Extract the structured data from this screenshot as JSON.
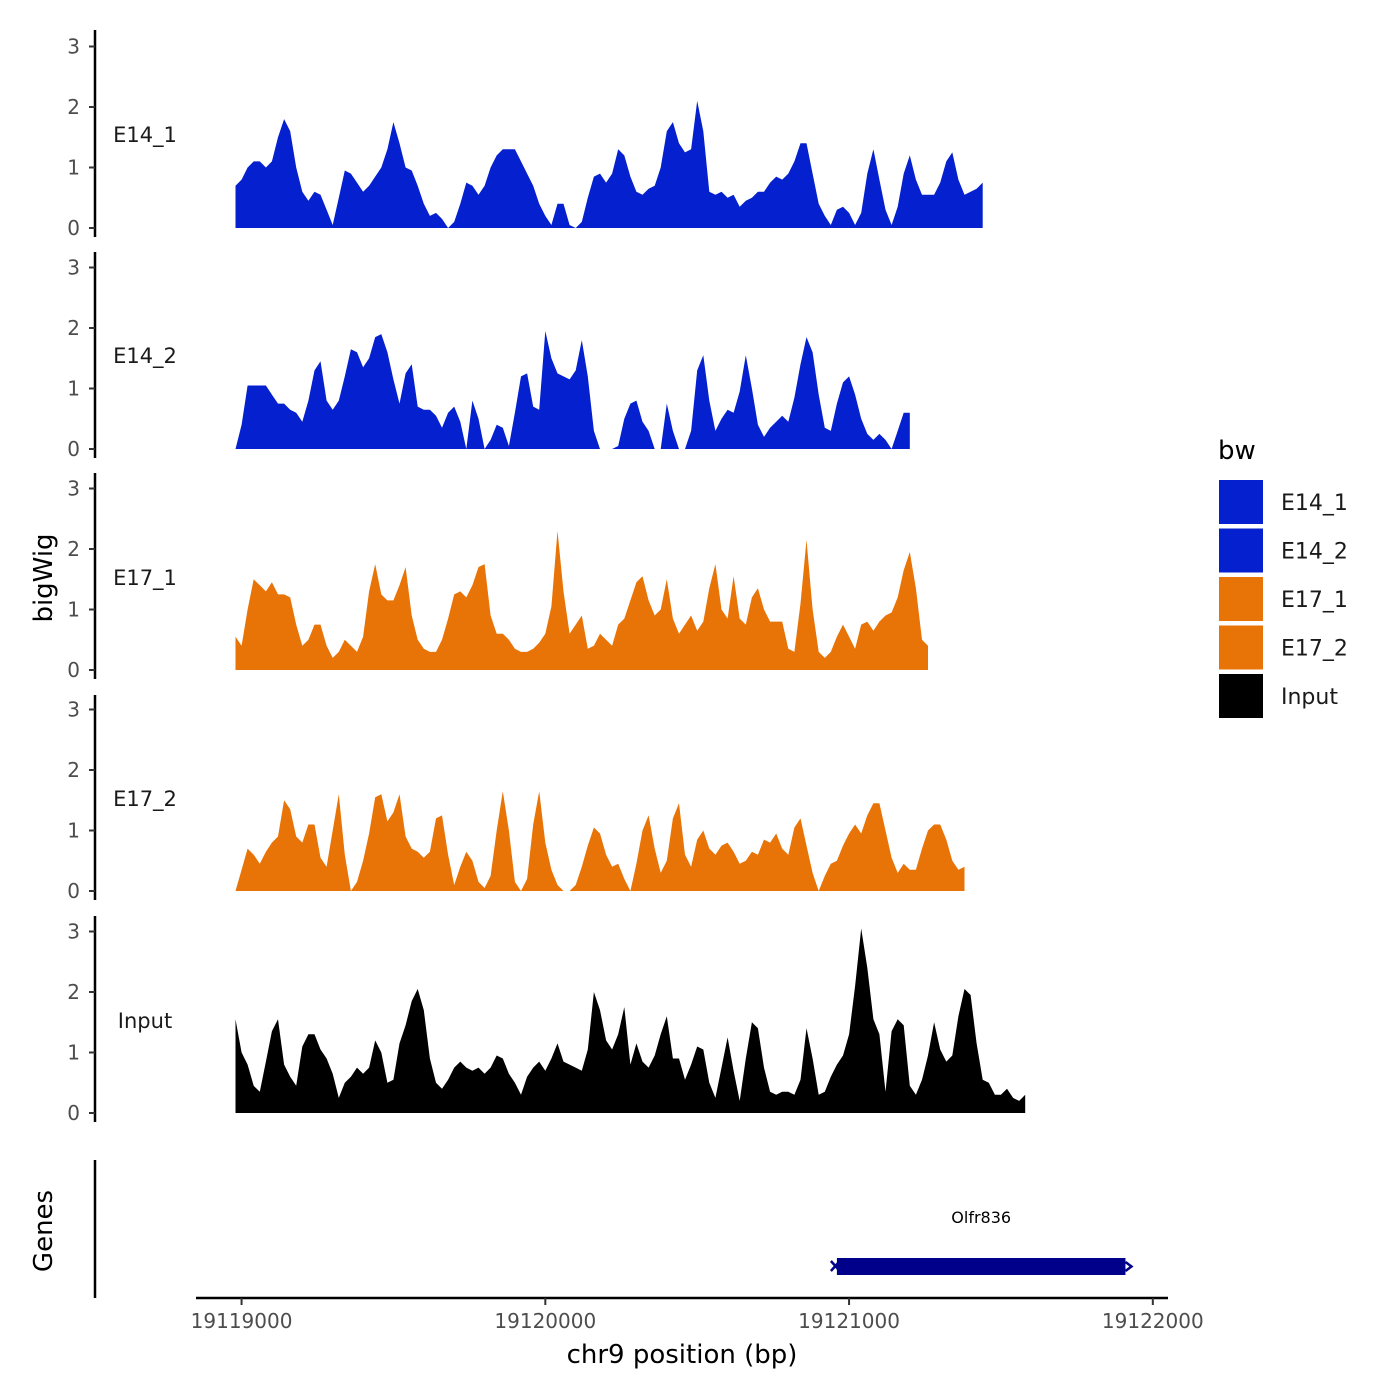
{
  "chart_data": {
    "type": "area",
    "y_axis_title": "bigWig",
    "x_axis_title": "chr9 position (bp)",
    "gene_track_title": "Genes",
    "xlim": [
      19118850,
      19122050
    ],
    "x_ticks": [
      19119000,
      19120000,
      19121000,
      19122000
    ],
    "x_tick_labels": [
      "19119000",
      "19120000",
      "19121000",
      "19122000"
    ],
    "ylim": [
      0,
      3.2
    ],
    "y_ticks": [
      0,
      1,
      2,
      3
    ],
    "y_tick_labels": [
      "0",
      "1",
      "2",
      "3"
    ],
    "x_step": 20,
    "x_start": 19118980,
    "series": [
      {
        "name": "E14_1",
        "color": "#0420CF",
        "values": [
          0.7,
          0.8,
          1.0,
          1.1,
          1.1,
          1.0,
          1.1,
          1.5,
          1.8,
          1.6,
          1.0,
          0.6,
          0.45,
          0.6,
          0.55,
          0.3,
          0.05,
          0.5,
          0.95,
          0.9,
          0.75,
          0.6,
          0.7,
          0.85,
          1.0,
          1.3,
          1.75,
          1.4,
          1.0,
          0.95,
          0.7,
          0.4,
          0.2,
          0.25,
          0.15,
          0.0,
          0.1,
          0.4,
          0.75,
          0.7,
          0.55,
          0.7,
          1.0,
          1.2,
          1.3,
          1.3,
          1.3,
          1.1,
          0.9,
          0.7,
          0.4,
          0.2,
          0.05,
          0.4,
          0.4,
          0.05,
          0.0,
          0.1,
          0.5,
          0.85,
          0.9,
          0.75,
          0.9,
          1.3,
          1.2,
          0.85,
          0.6,
          0.55,
          0.65,
          0.7,
          1.0,
          1.6,
          1.75,
          1.4,
          1.25,
          1.3,
          2.1,
          1.6,
          0.6,
          0.55,
          0.6,
          0.5,
          0.55,
          0.35,
          0.45,
          0.5,
          0.6,
          0.6,
          0.75,
          0.85,
          0.8,
          0.9,
          1.1,
          1.4,
          1.4,
          0.9,
          0.4,
          0.2,
          0.05,
          0.3,
          0.35,
          0.25,
          0.05,
          0.25,
          0.9,
          1.3,
          0.8,
          0.3,
          0.05,
          0.35,
          0.9,
          1.2,
          0.8,
          0.55,
          0.55,
          0.55,
          0.75,
          1.1,
          1.25,
          0.8,
          0.55,
          0.6,
          0.65,
          0.75
        ]
      },
      {
        "name": "E14_2",
        "color": "#0420CF",
        "values": [
          0.0,
          0.4,
          1.05,
          1.05,
          1.05,
          1.05,
          0.9,
          0.75,
          0.75,
          0.65,
          0.6,
          0.45,
          0.8,
          1.3,
          1.45,
          0.8,
          0.65,
          0.8,
          1.2,
          1.65,
          1.6,
          1.35,
          1.5,
          1.85,
          1.9,
          1.6,
          1.15,
          0.75,
          1.25,
          1.4,
          0.7,
          0.65,
          0.65,
          0.55,
          0.35,
          0.6,
          0.7,
          0.45,
          0.0,
          0.8,
          0.5,
          0.0,
          0.15,
          0.4,
          0.35,
          0.05,
          0.6,
          1.2,
          1.25,
          0.7,
          0.65,
          1.95,
          1.5,
          1.25,
          1.2,
          1.15,
          1.3,
          1.8,
          1.2,
          0.3,
          0.0,
          0.0,
          0.0,
          0.05,
          0.5,
          0.75,
          0.8,
          0.45,
          0.3,
          0.0,
          0.0,
          0.75,
          0.3,
          0.0,
          0.0,
          0.3,
          1.3,
          1.55,
          0.8,
          0.3,
          0.5,
          0.65,
          0.6,
          0.95,
          1.55,
          1.0,
          0.4,
          0.2,
          0.35,
          0.45,
          0.55,
          0.45,
          0.85,
          1.4,
          1.85,
          1.6,
          0.9,
          0.35,
          0.3,
          0.75,
          1.1,
          1.2,
          0.9,
          0.5,
          0.25,
          0.15,
          0.25,
          0.15,
          0.0,
          0.3,
          0.6,
          0.6
        ]
      },
      {
        "name": "E17_1",
        "color": "#E87306",
        "values": [
          0.55,
          0.4,
          1.0,
          1.5,
          1.4,
          1.3,
          1.45,
          1.25,
          1.25,
          1.2,
          0.75,
          0.4,
          0.5,
          0.75,
          0.75,
          0.4,
          0.2,
          0.3,
          0.5,
          0.4,
          0.3,
          0.55,
          1.3,
          1.75,
          1.25,
          1.15,
          1.15,
          1.4,
          1.7,
          0.9,
          0.5,
          0.35,
          0.3,
          0.3,
          0.5,
          0.85,
          1.25,
          1.3,
          1.2,
          1.4,
          1.7,
          1.75,
          0.9,
          0.6,
          0.6,
          0.5,
          0.35,
          0.3,
          0.3,
          0.35,
          0.45,
          0.6,
          1.05,
          2.3,
          1.3,
          0.6,
          0.75,
          0.9,
          0.35,
          0.4,
          0.6,
          0.5,
          0.4,
          0.75,
          0.85,
          1.15,
          1.45,
          1.55,
          1.15,
          0.9,
          1.0,
          1.5,
          0.85,
          0.6,
          0.75,
          0.9,
          0.65,
          0.8,
          1.35,
          1.75,
          1.0,
          0.85,
          1.55,
          0.85,
          0.75,
          1.2,
          1.35,
          1.0,
          0.8,
          0.8,
          0.8,
          0.35,
          0.3,
          1.1,
          2.15,
          1.0,
          0.3,
          0.2,
          0.3,
          0.55,
          0.75,
          0.55,
          0.35,
          0.75,
          0.8,
          0.65,
          0.8,
          0.9,
          0.95,
          1.2,
          1.65,
          1.95,
          1.35,
          0.5,
          0.4
        ]
      },
      {
        "name": "E17_2",
        "color": "#E87306",
        "values": [
          0.0,
          0.35,
          0.7,
          0.6,
          0.45,
          0.65,
          0.8,
          0.9,
          1.5,
          1.35,
          0.9,
          0.8,
          1.1,
          1.1,
          0.55,
          0.4,
          1.0,
          1.6,
          0.6,
          0.0,
          0.15,
          0.5,
          0.95,
          1.55,
          1.6,
          1.15,
          1.3,
          1.6,
          0.9,
          0.7,
          0.65,
          0.55,
          0.65,
          1.2,
          1.25,
          0.6,
          0.1,
          0.4,
          0.65,
          0.5,
          0.15,
          0.05,
          0.25,
          1.0,
          1.65,
          1.0,
          0.15,
          0.0,
          0.2,
          1.1,
          1.65,
          0.8,
          0.35,
          0.1,
          0.0,
          0.0,
          0.1,
          0.4,
          0.75,
          1.05,
          0.95,
          0.6,
          0.4,
          0.45,
          0.2,
          0.0,
          0.45,
          1.0,
          1.25,
          0.7,
          0.3,
          0.5,
          1.2,
          1.45,
          0.6,
          0.4,
          0.85,
          1.0,
          0.7,
          0.6,
          0.75,
          0.8,
          0.65,
          0.45,
          0.5,
          0.65,
          0.6,
          0.85,
          0.8,
          0.95,
          0.7,
          0.6,
          1.05,
          1.2,
          0.75,
          0.3,
          0.0,
          0.25,
          0.45,
          0.5,
          0.75,
          0.95,
          1.1,
          0.95,
          1.25,
          1.45,
          1.45,
          1.0,
          0.55,
          0.3,
          0.45,
          0.35,
          0.35,
          0.7,
          1.0,
          1.1,
          1.1,
          0.85,
          0.5,
          0.35,
          0.4
        ]
      },
      {
        "name": "Input",
        "color": "#000000",
        "values": [
          1.55,
          1.0,
          0.8,
          0.45,
          0.35,
          0.85,
          1.35,
          1.55,
          0.8,
          0.6,
          0.45,
          1.1,
          1.3,
          1.3,
          1.05,
          0.9,
          0.65,
          0.25,
          0.5,
          0.6,
          0.75,
          0.65,
          0.75,
          1.2,
          1.0,
          0.5,
          0.55,
          1.15,
          1.45,
          1.85,
          2.05,
          1.7,
          0.9,
          0.5,
          0.4,
          0.55,
          0.75,
          0.85,
          0.75,
          0.7,
          0.75,
          0.65,
          0.75,
          0.95,
          0.9,
          0.65,
          0.5,
          0.3,
          0.6,
          0.75,
          0.85,
          0.7,
          0.9,
          1.15,
          0.85,
          0.8,
          0.75,
          0.7,
          1.05,
          2.0,
          1.7,
          1.2,
          1.05,
          1.3,
          1.75,
          0.8,
          1.15,
          0.85,
          0.75,
          0.95,
          1.3,
          1.6,
          0.9,
          0.9,
          0.55,
          0.8,
          1.1,
          1.05,
          0.5,
          0.25,
          0.75,
          1.25,
          0.7,
          0.2,
          0.9,
          1.5,
          1.4,
          0.75,
          0.35,
          0.3,
          0.35,
          0.35,
          0.3,
          0.55,
          1.4,
          0.9,
          0.3,
          0.35,
          0.6,
          0.8,
          0.95,
          1.3,
          2.1,
          3.05,
          2.4,
          1.55,
          1.3,
          0.35,
          1.35,
          1.55,
          1.45,
          0.45,
          0.3,
          0.55,
          0.95,
          1.5,
          1.05,
          0.85,
          0.95,
          1.6,
          2.05,
          1.95,
          1.15,
          0.55,
          0.5,
          0.3,
          0.3,
          0.4,
          0.25,
          0.2,
          0.3
        ]
      }
    ],
    "genes": [
      {
        "name": "Olfr836",
        "start": 19120960,
        "end": 19121910,
        "strand": "-",
        "color": "#00008B"
      }
    ],
    "legend": {
      "title": "bw",
      "position": "right",
      "entries": [
        {
          "label": "E14_1",
          "color": "#0420CF"
        },
        {
          "label": "E14_2",
          "color": "#0420CF"
        },
        {
          "label": "E17_1",
          "color": "#E87306"
        },
        {
          "label": "E17_2",
          "color": "#E87306"
        },
        {
          "label": "Input",
          "color": "#000000"
        }
      ]
    }
  }
}
